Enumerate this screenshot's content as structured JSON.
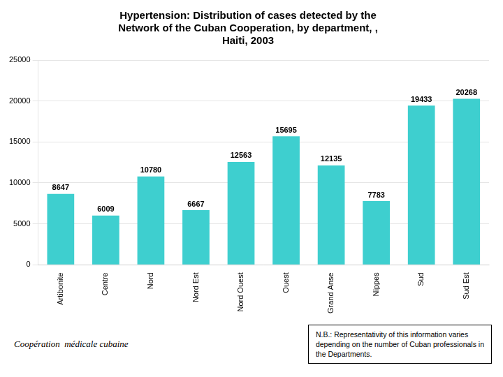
{
  "chart_data": {
    "type": "bar",
    "title": "Hypertension: Distribution of cases detected by the\nNetwork of the Cuban Cooperation, by department, ,\nHaiti, 2003",
    "categories": [
      "Artibonite",
      "Centre",
      "Nord",
      "Nord Est",
      "Nord Ouest",
      "Ouest",
      "Grand Anse",
      "Nippes",
      "Sud",
      "Sud Est"
    ],
    "values": [
      8647,
      6009,
      10780,
      6667,
      12563,
      15695,
      12135,
      7783,
      19433,
      20268
    ],
    "color": "#3ECFCF",
    "ylim": [
      0,
      25000
    ],
    "yticks": [
      0,
      5000,
      10000,
      15000,
      20000,
      25000
    ],
    "grid": true,
    "data_labels": true,
    "annotations": [
      "Coopération  médicale cubaine",
      "N.B.: Representativity of this information varies\ndepending on the number of Cuban professionals in\nthe Departments."
    ]
  }
}
